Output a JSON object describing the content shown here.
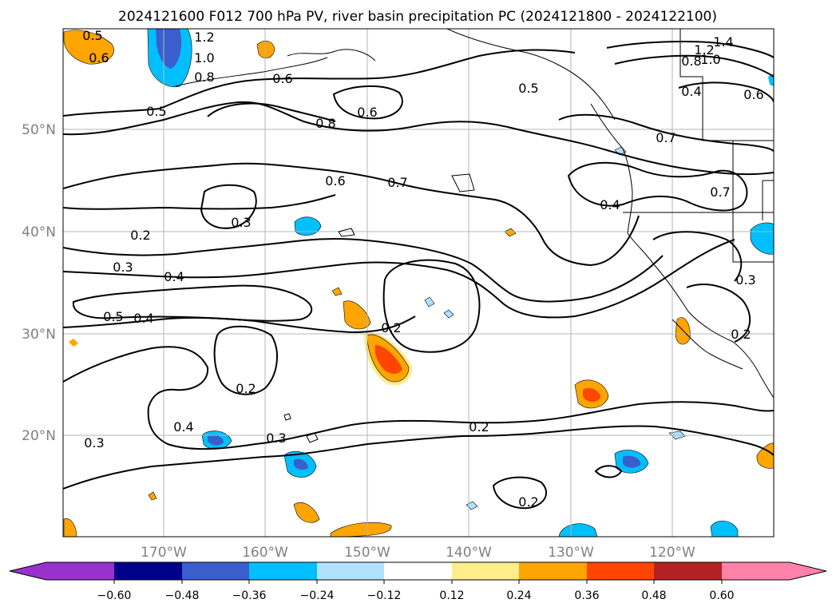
{
  "title": "2024121600 F012 700 hPa PV, river basin precipitation PC (2024121800 - 2024122100)",
  "map": {
    "lat_labels": [
      "50°N",
      "40°N",
      "30°N",
      "20°N"
    ],
    "lon_labels": [
      "170°W",
      "160°W",
      "150°W",
      "140°W",
      "130°W",
      "120°W"
    ],
    "gridlines": true,
    "contour_labels": [
      "1.2",
      "1.0",
      "0.8",
      "0.6",
      "0.5",
      "0.5",
      "0.6",
      "0.8",
      "0.6",
      "0.7",
      "0.6",
      "0.5",
      "1.4",
      "1.2",
      "1.0",
      "0.8",
      "0.4",
      "0.6",
      "0.7",
      "0.4",
      "0.7",
      "0.3",
      "0.2",
      "0.3",
      "0.4",
      "0.5",
      "0.4",
      "0.2",
      "0.2",
      "0.4",
      "0.3",
      "0.2",
      "0.2",
      "0.3",
      "0.3",
      "0.2"
    ]
  },
  "colorbar": {
    "ticks": [
      "−0.60",
      "−0.48",
      "−0.36",
      "−0.24",
      "−0.12",
      "0.12",
      "0.24",
      "0.36",
      "0.48",
      "0.60"
    ],
    "colors": [
      "#9932cc",
      "#00008b",
      "#3a5fcd",
      "#00bfff",
      "#b0e2ff",
      "#ffffff",
      "#ffec8b",
      "#ffa500",
      "#ff4500",
      "#b22222",
      "#ff82ab"
    ]
  },
  "colors": {
    "contour": "#000000",
    "grid": "#b4b4b4",
    "coast": "#000000"
  }
}
